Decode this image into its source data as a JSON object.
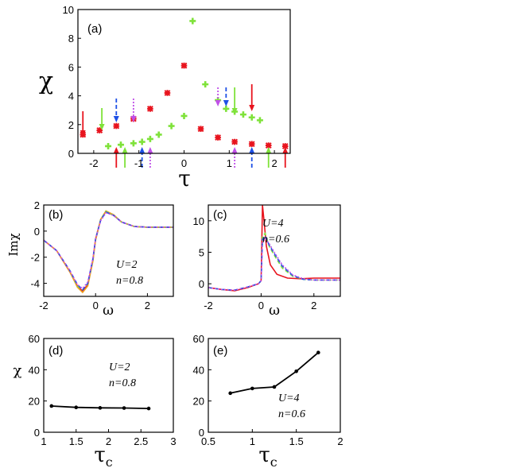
{
  "colors": {
    "red": "#e8141e",
    "green": "#7fe23a",
    "blue": "#1e50e6",
    "purple": "#c050e8",
    "orange": "#f0a020",
    "black": "#000000"
  },
  "chart_data": [
    {
      "id": "a",
      "type": "scatter",
      "panel_label": "(a)",
      "xlabel": "τ",
      "ylabel": "χ",
      "xlim": [
        -2.35,
        2.35
      ],
      "ylim": [
        0,
        10
      ],
      "xticks": [
        -2,
        -1,
        0,
        1,
        2
      ],
      "yticks": [
        0,
        2,
        4,
        6,
        8,
        10
      ],
      "series": [
        {
          "name": "red",
          "marker": "x-cross",
          "color": "red",
          "x": [
            -2.24,
            -1.87,
            -1.5,
            -1.12,
            -0.75,
            -0.37,
            0,
            0.37,
            0.75,
            1.12,
            1.5,
            1.87,
            2.24
          ],
          "y": [
            1.3,
            1.6,
            1.9,
            2.4,
            3.1,
            4.2,
            6.1,
            1.7,
            1.1,
            0.8,
            0.65,
            0.55,
            0.5
          ]
        },
        {
          "name": "green",
          "marker": "plus",
          "color": "green",
          "x": [
            -1.68,
            -1.4,
            -1.12,
            -0.93,
            -0.75,
            -0.56,
            -0.28,
            0,
            0.19,
            0.47,
            0.75,
            0.93,
            1.12,
            1.31,
            1.5,
            1.68
          ],
          "y": [
            0.5,
            0.6,
            0.7,
            0.8,
            1.0,
            1.3,
            1.9,
            2.6,
            9.2,
            4.8,
            3.7,
            3.1,
            2.9,
            2.7,
            2.5,
            2.3
          ]
        }
      ],
      "arrows": [
        {
          "x": -2.24,
          "dir": "down",
          "color": "red",
          "style": "solid"
        },
        {
          "x": -1.82,
          "dir": "down",
          "color": "green",
          "style": "solid"
        },
        {
          "x": -1.5,
          "dir": "up",
          "color": "red",
          "style": "solid"
        },
        {
          "x": -1.31,
          "dir": "up",
          "color": "green",
          "style": "solid"
        },
        {
          "x": -1.5,
          "dir": "down",
          "color": "blue",
          "style": "dashed"
        },
        {
          "x": -1.12,
          "dir": "down",
          "color": "purple",
          "style": "dotted"
        },
        {
          "x": -0.93,
          "dir": "up",
          "color": "blue",
          "style": "dashed"
        },
        {
          "x": -0.75,
          "dir": "up",
          "color": "purple",
          "style": "dotted"
        },
        {
          "x": 0.75,
          "dir": "down",
          "color": "purple",
          "style": "dotted"
        },
        {
          "x": 0.93,
          "dir": "down",
          "color": "blue",
          "style": "dashed"
        },
        {
          "x": 1.12,
          "dir": "up",
          "color": "purple",
          "style": "dotted"
        },
        {
          "x": 1.12,
          "dir": "down",
          "color": "green",
          "style": "solid"
        },
        {
          "x": 1.5,
          "dir": "up",
          "color": "blue",
          "style": "dashed"
        },
        {
          "x": 1.5,
          "dir": "down",
          "color": "red",
          "style": "solid"
        },
        {
          "x": 1.87,
          "dir": "up",
          "color": "green",
          "style": "solid"
        },
        {
          "x": 2.24,
          "dir": "up",
          "color": "red",
          "style": "solid"
        }
      ]
    },
    {
      "id": "b",
      "type": "line",
      "panel_label": "(b)",
      "xlabel": "ω",
      "ylabel": "Imχ",
      "xlim": [
        -2,
        3
      ],
      "ylim": [
        -5,
        2
      ],
      "xticks": [
        -2,
        0,
        2
      ],
      "yticks": [
        -4,
        -2,
        0,
        2
      ],
      "annotation": [
        "U=2",
        "n=0.8"
      ],
      "series": [
        {
          "name": "red",
          "color": "red",
          "style": "solid",
          "x": [
            -2,
            -1.5,
            -1,
            -0.7,
            -0.5,
            -0.3,
            -0.1,
            0,
            0.2,
            0.4,
            0.7,
            1,
            1.5,
            2,
            3
          ],
          "y": [
            -0.7,
            -1.5,
            -3.1,
            -4.2,
            -4.6,
            -4.1,
            -2.2,
            -0.6,
            0.9,
            1.5,
            1.2,
            0.7,
            0.35,
            0.3,
            0.3
          ]
        },
        {
          "name": "orange",
          "color": "orange",
          "style": "solid",
          "x": [
            -2,
            -1.5,
            -1,
            -0.7,
            -0.5,
            -0.3,
            -0.1,
            0,
            0.2,
            0.4,
            0.7,
            1,
            1.5,
            2,
            3
          ],
          "y": [
            -0.7,
            -1.5,
            -3.1,
            -4.3,
            -4.7,
            -4.2,
            -2.3,
            -0.7,
            0.9,
            1.55,
            1.25,
            0.7,
            0.35,
            0.3,
            0.3
          ]
        },
        {
          "name": "green",
          "color": "green",
          "style": "dashed",
          "x": [
            -2,
            -1.5,
            -1,
            -0.7,
            -0.5,
            -0.3,
            -0.1,
            0,
            0.2,
            0.4,
            0.7,
            1,
            1.5,
            2,
            3
          ],
          "y": [
            -0.7,
            -1.5,
            -3.0,
            -4.2,
            -4.5,
            -4.0,
            -2.2,
            -0.6,
            0.9,
            1.5,
            1.2,
            0.7,
            0.35,
            0.3,
            0.3
          ]
        },
        {
          "name": "blue",
          "color": "blue",
          "style": "dashed",
          "x": [
            -2,
            -1.5,
            -1,
            -0.7,
            -0.5,
            -0.3,
            -0.1,
            0,
            0.2,
            0.4,
            0.7,
            1,
            1.5,
            2,
            3
          ],
          "y": [
            -0.7,
            -1.5,
            -3.0,
            -4.1,
            -4.5,
            -4.0,
            -2.1,
            -0.6,
            0.85,
            1.45,
            1.2,
            0.7,
            0.35,
            0.3,
            0.3
          ]
        },
        {
          "name": "purple",
          "color": "purple",
          "style": "dotted",
          "x": [
            -2,
            -1.5,
            -1,
            -0.7,
            -0.5,
            -0.3,
            -0.1,
            0,
            0.2,
            0.4,
            0.7,
            1,
            1.5,
            2,
            3
          ],
          "y": [
            -0.7,
            -1.5,
            -3.0,
            -4.1,
            -4.4,
            -3.9,
            -2.1,
            -0.6,
            0.8,
            1.4,
            1.2,
            0.7,
            0.35,
            0.3,
            0.3
          ]
        }
      ]
    },
    {
      "id": "c",
      "type": "line",
      "panel_label": "(c)",
      "xlabel": "ω",
      "ylabel": "",
      "xlim": [
        -2,
        3
      ],
      "ylim": [
        -2,
        12.5
      ],
      "xticks": [
        -2,
        0,
        2
      ],
      "yticks": [
        0,
        5,
        10
      ],
      "annotation": [
        "U=4",
        "n=0.6"
      ],
      "series": [
        {
          "name": "red",
          "color": "red",
          "style": "solid",
          "x": [
            -2,
            -1.5,
            -1,
            -0.5,
            -0.1,
            0,
            0.05,
            0.1,
            0.2,
            0.35,
            0.6,
            1,
            1.5,
            2,
            3
          ],
          "y": [
            -0.6,
            -0.9,
            -1.1,
            -0.6,
            0,
            0.5,
            12.5,
            10.5,
            6,
            3,
            1.5,
            0.9,
            0.8,
            0.9,
            0.9
          ]
        },
        {
          "name": "green",
          "color": "green",
          "style": "dashed",
          "x": [
            -2,
            -1.5,
            -1,
            -0.5,
            -0.1,
            0,
            0.05,
            0.15,
            0.3,
            0.5,
            0.8,
            1.2,
            1.6,
            2,
            3
          ],
          "y": [
            -0.6,
            -0.9,
            -1.0,
            -0.5,
            0,
            0.5,
            7.5,
            8,
            6,
            4.5,
            2.5,
            1.2,
            0.7,
            0.6,
            0.6
          ]
        },
        {
          "name": "blue",
          "color": "blue",
          "style": "dashed",
          "x": [
            -2,
            -1.5,
            -1,
            -0.5,
            -0.1,
            0,
            0.05,
            0.15,
            0.3,
            0.5,
            0.8,
            1.2,
            1.6,
            2,
            3
          ],
          "y": [
            -0.6,
            -0.9,
            -1.0,
            -0.5,
            0,
            0.5,
            7,
            7.6,
            6.2,
            4.8,
            2.8,
            1.3,
            0.7,
            0.6,
            0.6
          ]
        },
        {
          "name": "purple",
          "color": "purple",
          "style": "dotted",
          "x": [
            -2,
            -1.5,
            -1,
            -0.5,
            -0.1,
            0,
            0.05,
            0.15,
            0.3,
            0.5,
            0.8,
            1.2,
            1.6,
            2,
            3
          ],
          "y": [
            -0.6,
            -0.9,
            -1.0,
            -0.5,
            0,
            0.5,
            6.5,
            7.2,
            6.4,
            5,
            3,
            1.4,
            0.8,
            0.6,
            0.6
          ]
        }
      ]
    },
    {
      "id": "d",
      "type": "line",
      "panel_label": "(d)",
      "xlabel": "τ",
      "xlabel_sub": "c",
      "ylabel": "χ",
      "xlim": [
        1,
        3
      ],
      "ylim": [
        0,
        60
      ],
      "xticks": [
        1,
        1.5,
        2,
        2.5,
        3
      ],
      "yticks": [
        0,
        20,
        40,
        60
      ],
      "annotation": [
        "U=2",
        "n=0.8"
      ],
      "series": [
        {
          "name": "chi",
          "color": "black",
          "x": [
            1.12,
            1.5,
            1.87,
            2.24,
            2.62
          ],
          "y": [
            16.8,
            15.9,
            15.6,
            15.5,
            15.2
          ]
        }
      ]
    },
    {
      "id": "e",
      "type": "line",
      "panel_label": "(e)",
      "xlabel": "τ",
      "xlabel_sub": "c",
      "ylabel": "",
      "xlim": [
        0.5,
        2
      ],
      "ylim": [
        0,
        60
      ],
      "xticks": [
        0.5,
        1,
        1.5,
        2
      ],
      "yticks": [
        0,
        20,
        40,
        60
      ],
      "annotation": [
        "U=4",
        "n=0.6"
      ],
      "series": [
        {
          "name": "chi",
          "color": "black",
          "x": [
            0.75,
            1.0,
            1.25,
            1.5,
            1.75
          ],
          "y": [
            25,
            28,
            29,
            39,
            51
          ]
        }
      ]
    }
  ]
}
